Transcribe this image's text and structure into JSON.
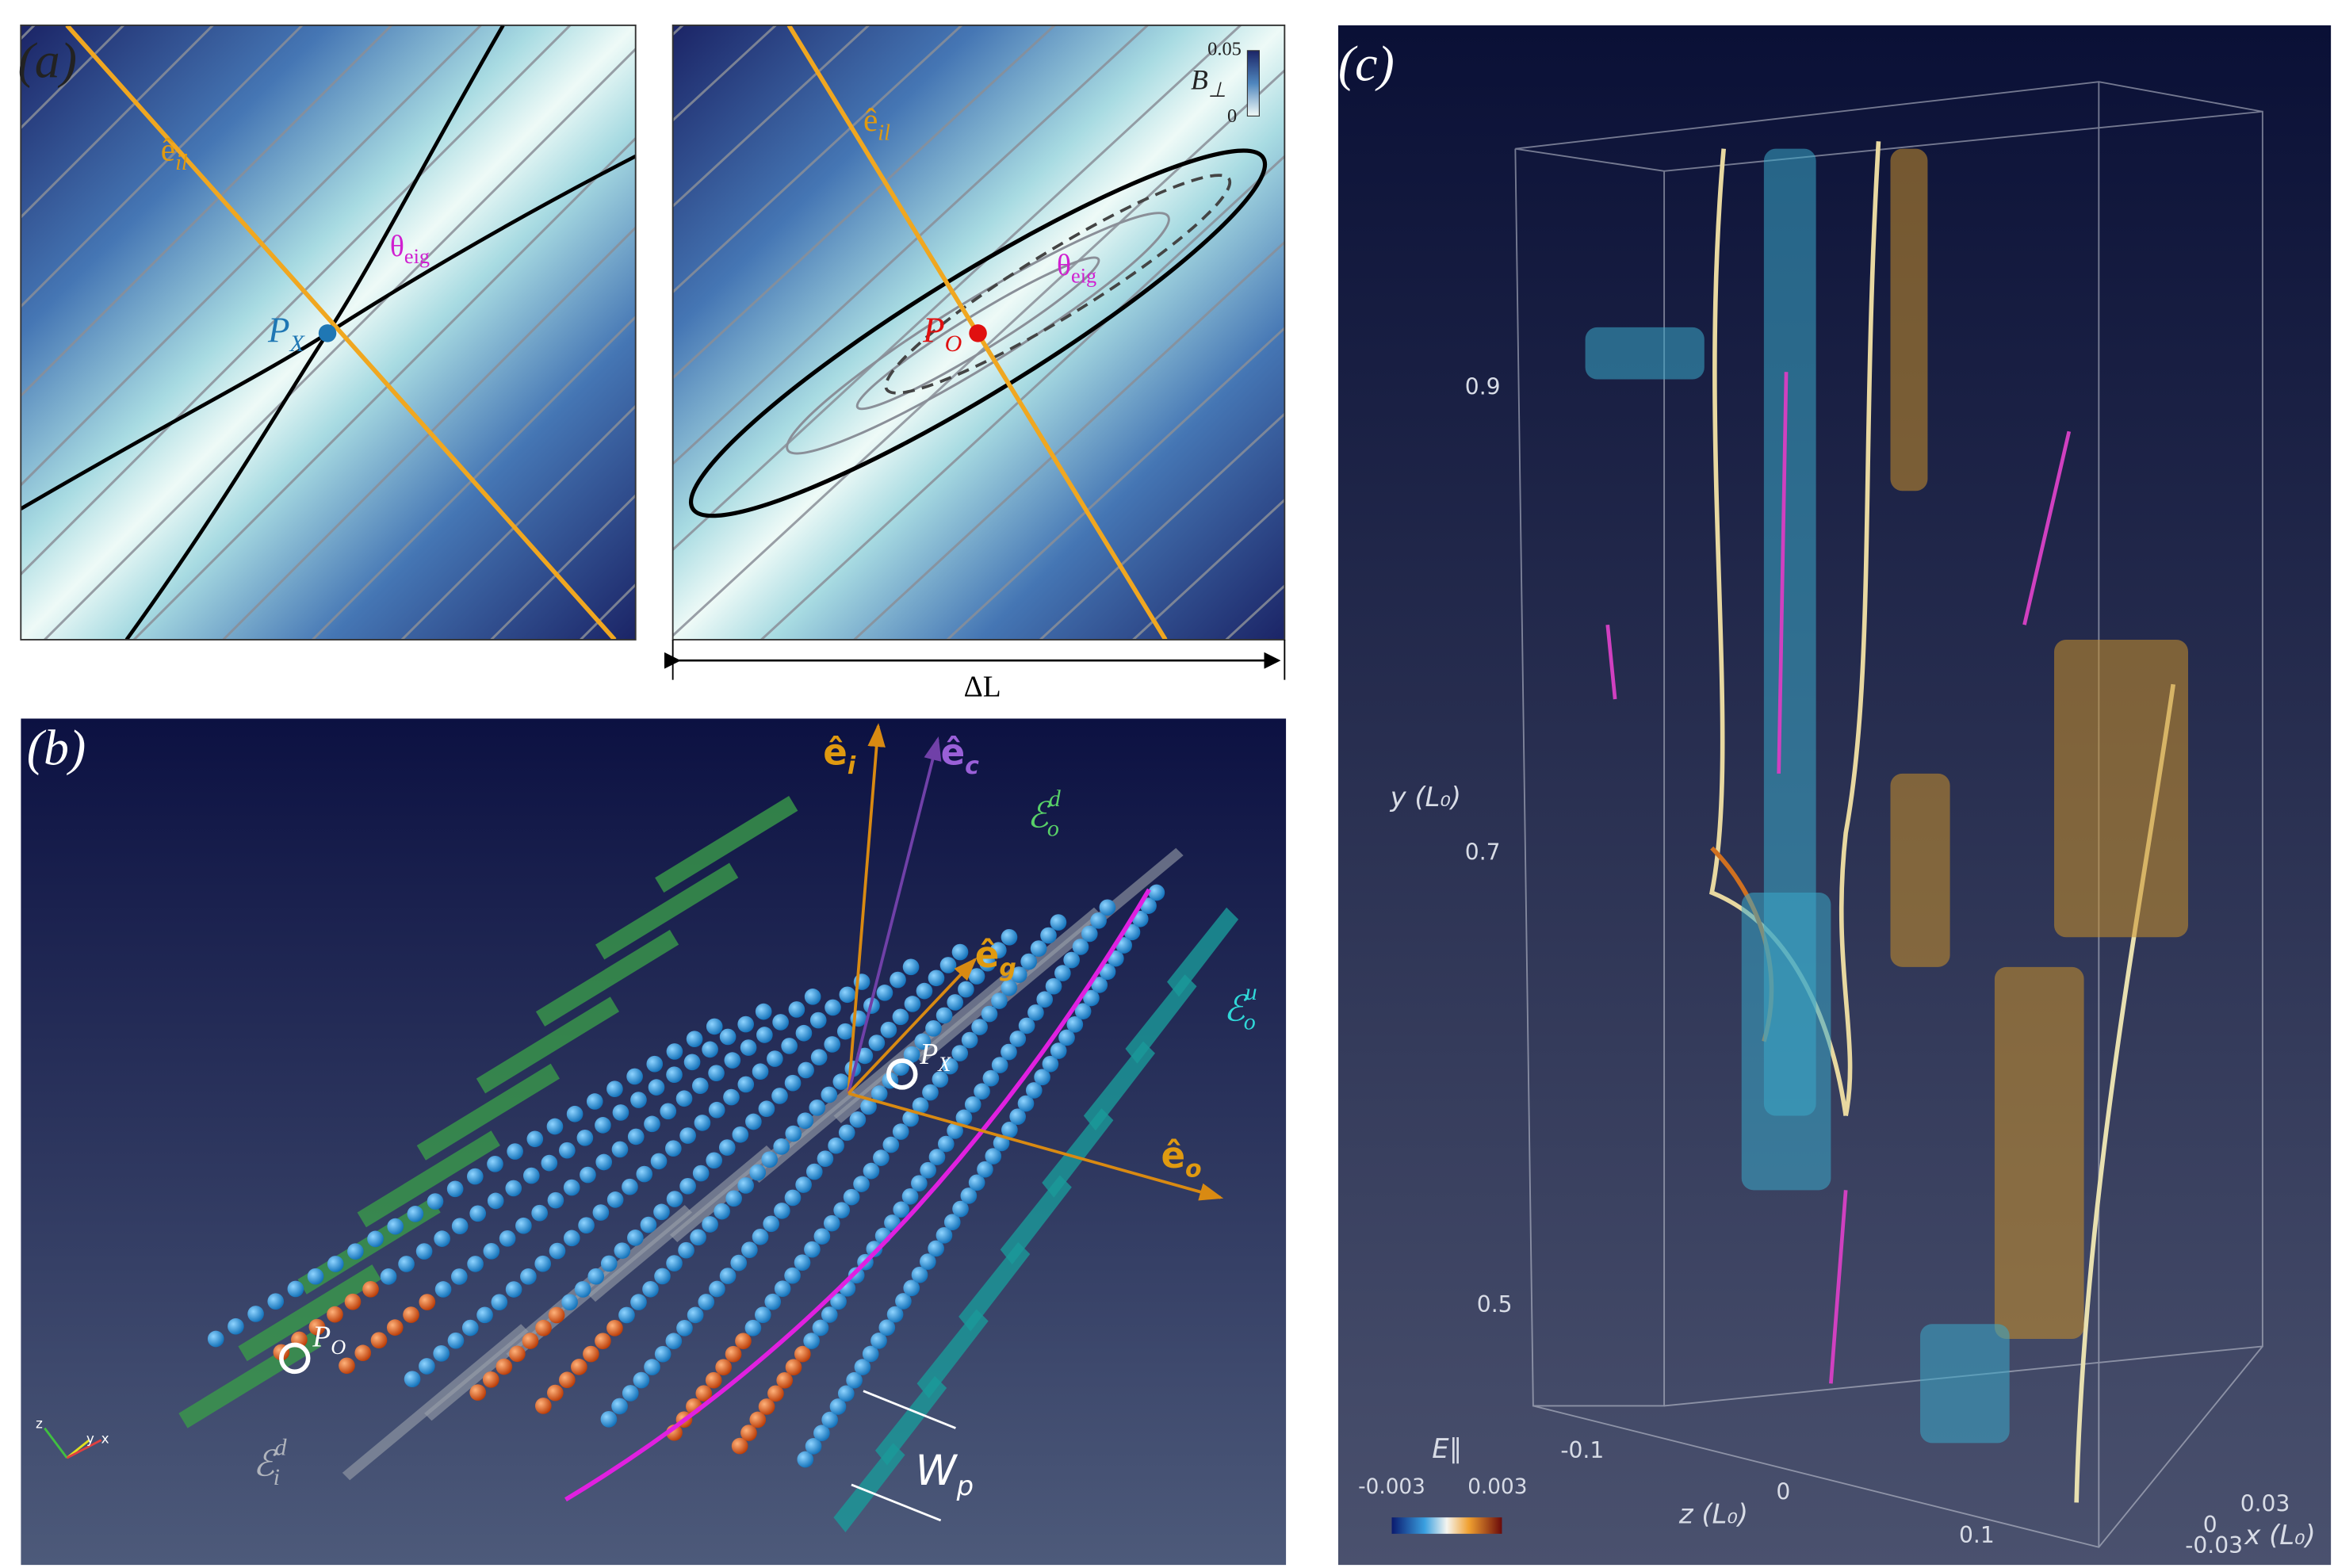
{
  "panels": {
    "a": {
      "label": "(a)",
      "left": {
        "axis_label": {
          "base": "ê",
          "sub": "il"
        },
        "angle_label": {
          "base": "θ",
          "sub": "eig"
        },
        "point_label": {
          "base": "P",
          "sub": "X"
        }
      },
      "right": {
        "axis_label": {
          "base": "ê",
          "sub": "il"
        },
        "angle_label": {
          "base": "θ",
          "sub": "eig"
        },
        "point_label": {
          "base": "P",
          "sub": "O"
        },
        "colorbar": {
          "title": {
            "base": "B",
            "sub": "⊥"
          },
          "max": "0.05",
          "min": "0"
        }
      },
      "width_label": "ΔL"
    },
    "b": {
      "label": "(b)",
      "vectors": {
        "i": {
          "base": "ê",
          "sub": "i"
        },
        "c": {
          "base": "ê",
          "sub": "c"
        },
        "g": {
          "base": "ê",
          "sub": "g"
        },
        "o": {
          "base": "ê",
          "sub": "o"
        }
      },
      "surfaces": {
        "o_d": {
          "base": "ℰ",
          "sub": "o",
          "sup": "d"
        },
        "o_u": {
          "base": "ℰ",
          "sub": "o",
          "sup": "u"
        },
        "i_d": {
          "base": "ℰ",
          "sub": "i",
          "sup": "d"
        }
      },
      "points": {
        "x": {
          "base": "P",
          "sub": "X"
        },
        "o": {
          "base": "P",
          "sub": "O"
        }
      },
      "width_label": {
        "base": "W",
        "sub": "p"
      },
      "triad": [
        "z",
        "y",
        "x"
      ]
    },
    "c": {
      "label": "(c)",
      "y_axis": {
        "title": "y (L₀)",
        "ticks": [
          "0.9",
          "0.7",
          "0.5"
        ]
      },
      "z_axis": {
        "title": "z (L₀)",
        "ticks": [
          "-0.1",
          "0",
          "0.1"
        ]
      },
      "x_axis": {
        "title": "x (L₀)",
        "ticks": [
          "0.03",
          "0",
          "-0.03"
        ]
      },
      "colorbar": {
        "title": "E∥",
        "min": "-0.003",
        "max": "0.003"
      }
    }
  }
}
